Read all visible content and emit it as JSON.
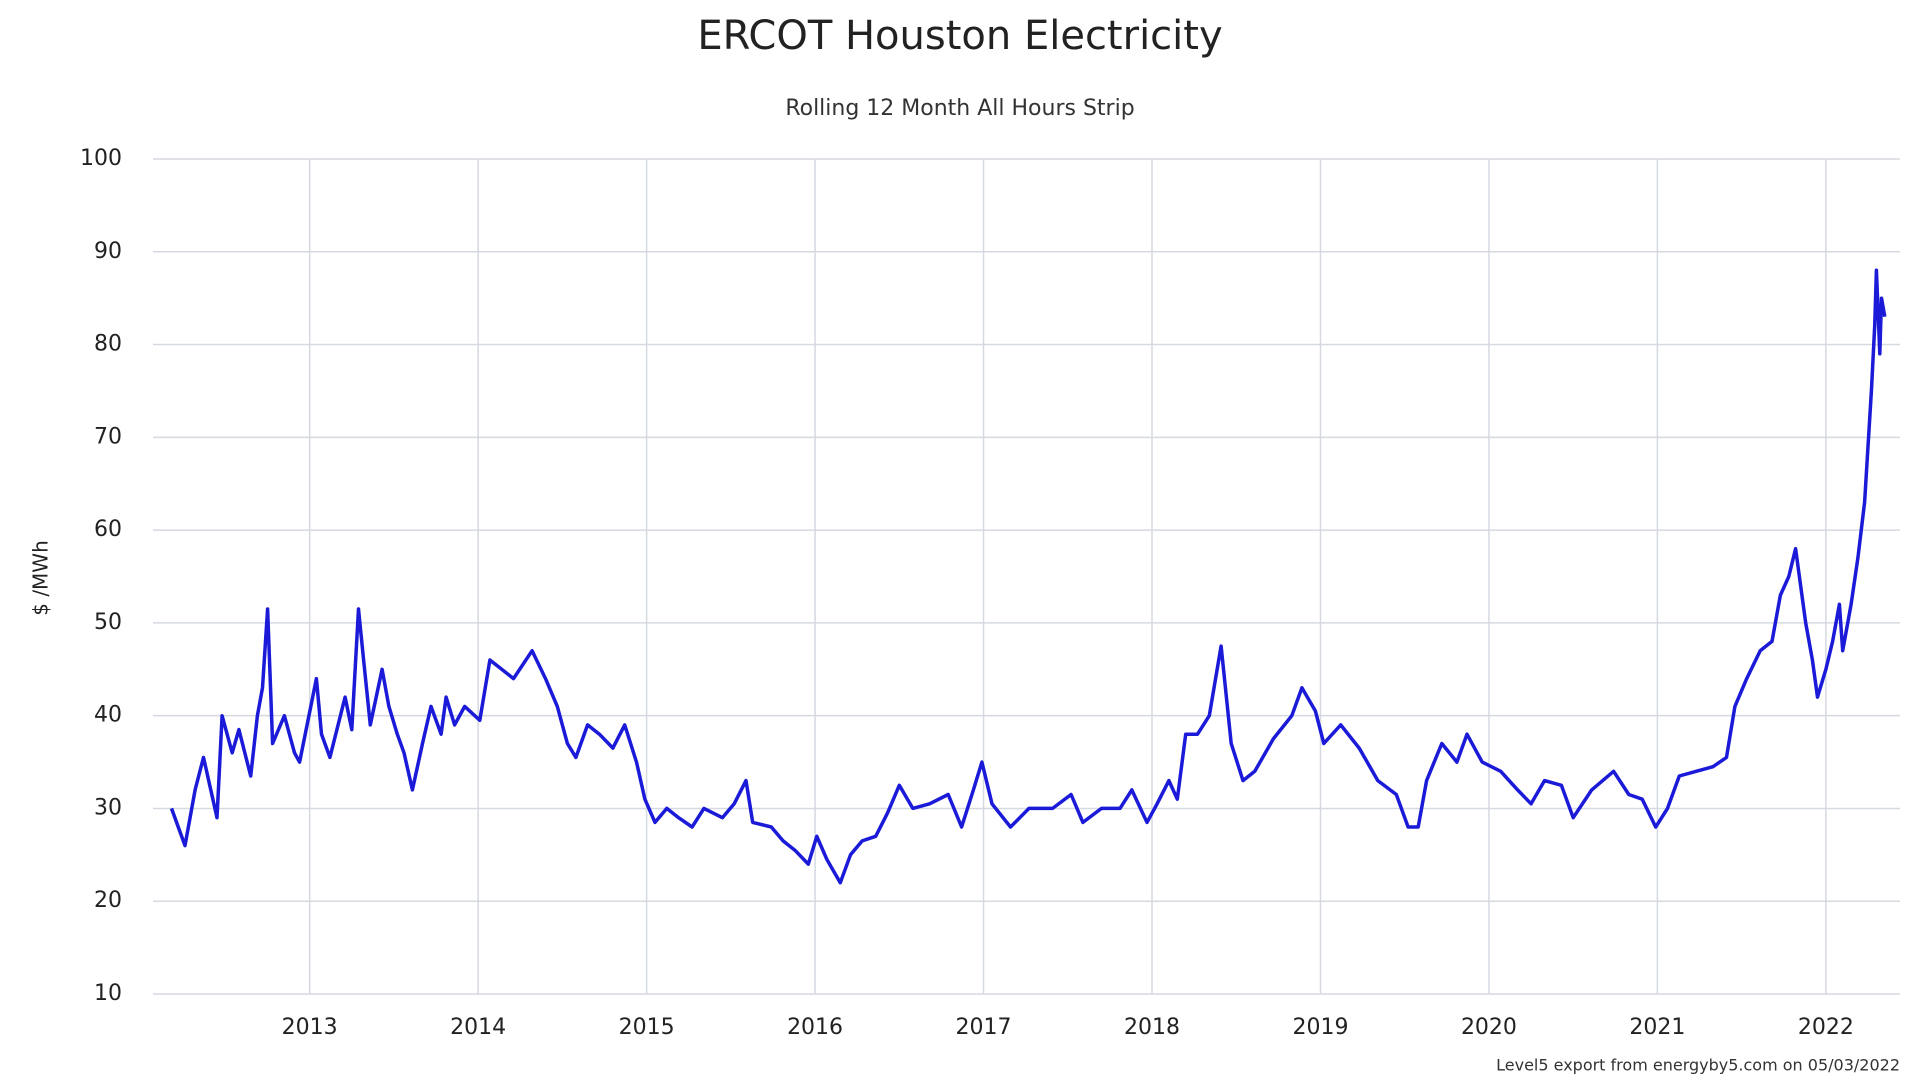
{
  "chart_data": {
    "type": "line",
    "title": "ERCOT Houston Electricity",
    "subtitle": "Rolling 12 Month All Hours Strip",
    "y_label": "$ /MWh",
    "footnote": "Level5 export from energyby5.com on 05/03/2022",
    "xlim": [
      2012.07,
      2022.44
    ],
    "xticks": [
      2013,
      2014,
      2015,
      2016,
      2017,
      2018,
      2019,
      2020,
      2021,
      2022
    ],
    "ylim": [
      10,
      100
    ],
    "yticks": [
      10,
      20,
      30,
      40,
      50,
      60,
      70,
      80,
      90,
      100
    ],
    "grid": true,
    "series": [
      {
        "name": "ERCOT Houston",
        "color": "#1a1ad8",
        "x": [
          2012.18,
          2012.26,
          2012.32,
          2012.37,
          2012.45,
          2012.48,
          2012.54,
          2012.58,
          2012.65,
          2012.69,
          2012.72,
          2012.75,
          2012.78,
          2012.85,
          2012.91,
          2012.94,
          2013.04,
          2013.07,
          2013.12,
          2013.21,
          2013.25,
          2013.29,
          2013.32,
          2013.36,
          2013.43,
          2013.47,
          2013.52,
          2013.56,
          2013.61,
          2013.67,
          2013.72,
          2013.78,
          2013.81,
          2013.86,
          2013.92,
          2014.01,
          2014.07,
          2014.14,
          2014.21,
          2014.32,
          2014.4,
          2014.47,
          2014.53,
          2014.58,
          2014.65,
          2014.72,
          2014.8,
          2014.87,
          2014.94,
          2014.99,
          2015.05,
          2015.12,
          2015.19,
          2015.27,
          2015.34,
          2015.45,
          2015.52,
          2015.59,
          2015.63,
          2015.74,
          2015.81,
          2015.88,
          2015.96,
          2016.01,
          2016.07,
          2016.15,
          2016.21,
          2016.28,
          2016.36,
          2016.43,
          2016.5,
          2016.58,
          2016.68,
          2016.79,
          2016.87,
          2016.94,
          2016.99,
          2017.05,
          2017.16,
          2017.27,
          2017.41,
          2017.52,
          2017.59,
          2017.7,
          2017.81,
          2017.88,
          2017.97,
          2018.03,
          2018.1,
          2018.15,
          2018.2,
          2018.27,
          2018.34,
          2018.41,
          2018.47,
          2018.54,
          2018.61,
          2018.72,
          2018.83,
          2018.89,
          2018.97,
          2019.02,
          2019.12,
          2019.23,
          2019.34,
          2019.45,
          2019.52,
          2019.58,
          2019.63,
          2019.72,
          2019.81,
          2019.87,
          2019.96,
          2020.07,
          2020.17,
          2020.25,
          2020.33,
          2020.43,
          2020.5,
          2020.61,
          2020.74,
          2020.83,
          2020.91,
          2020.99,
          2021.06,
          2021.13,
          2021.23,
          2021.33,
          2021.41,
          2021.46,
          2021.53,
          2021.61,
          2021.68,
          2021.73,
          2021.78,
          2021.82,
          2021.88,
          2021.92,
          2021.95,
          2022.0,
          2022.04,
          2022.08,
          2022.1,
          2022.15,
          2022.19,
          2022.23,
          2022.27,
          2022.29,
          2022.3,
          2022.32,
          2022.33,
          2022.35
        ],
        "values": [
          30,
          26,
          32,
          35.5,
          29,
          40,
          36,
          38.5,
          33.5,
          40,
          43,
          51.5,
          37,
          40,
          36,
          35,
          44,
          38,
          35.5,
          42,
          38.5,
          51.5,
          46,
          39,
          45,
          41,
          38,
          36,
          32,
          37,
          41,
          38,
          42,
          39,
          41,
          39.5,
          46,
          45,
          44,
          47,
          44,
          41,
          37,
          35.5,
          39,
          38,
          36.5,
          39,
          35,
          31,
          28.5,
          30,
          29,
          28,
          30,
          29,
          30.5,
          33,
          28.5,
          28,
          26.5,
          25.5,
          24,
          27,
          24.5,
          22,
          25,
          26.5,
          27,
          29.5,
          32.5,
          30,
          30.5,
          31.5,
          28,
          32,
          35,
          30.5,
          28,
          30,
          30,
          31.5,
          28.5,
          30,
          30,
          32,
          28.5,
          30.5,
          33,
          31,
          38,
          38,
          40,
          47.5,
          37,
          33,
          34,
          37.5,
          40,
          43,
          40.5,
          37,
          39,
          36.5,
          33,
          31.5,
          28,
          28,
          33,
          37,
          35,
          38,
          35,
          34,
          32,
          30.5,
          33,
          32.5,
          29,
          32,
          34,
          31.5,
          31,
          28,
          30,
          33.5,
          34,
          34.5,
          35.5,
          41,
          44,
          47,
          48,
          53,
          55,
          58,
          50,
          46,
          42,
          45,
          48,
          52,
          47,
          52,
          57,
          63,
          75,
          82,
          88,
          79,
          85,
          83
        ]
      }
    ]
  }
}
